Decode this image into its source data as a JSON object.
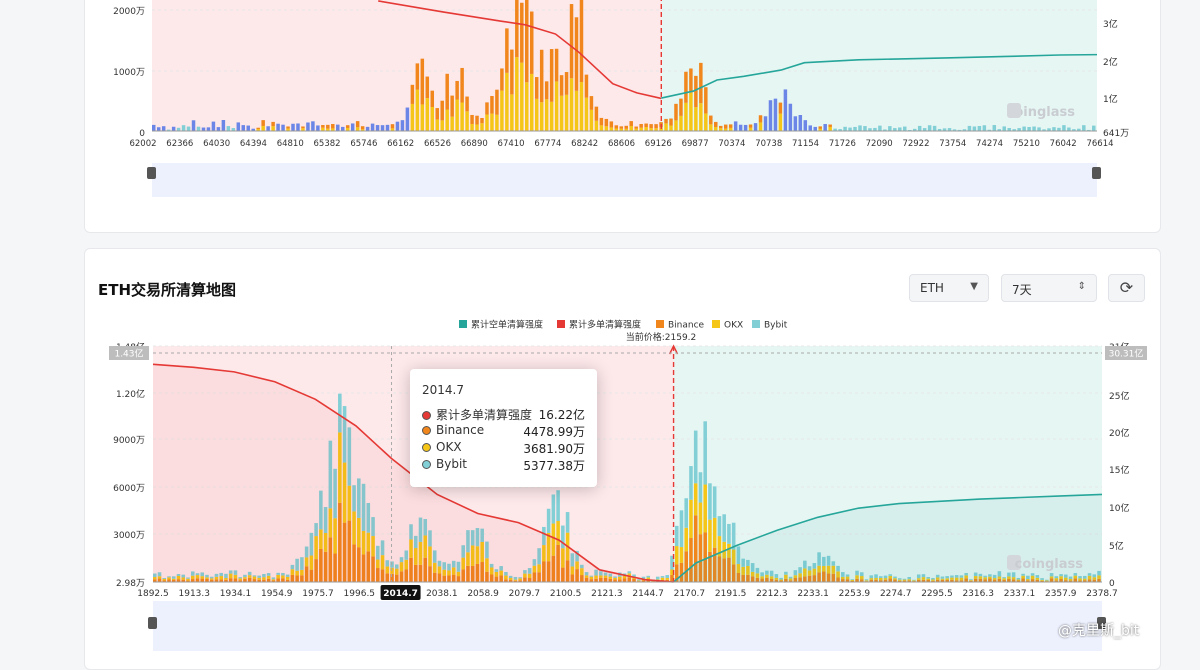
{
  "btc_section": {
    "y_left_labels": [
      "2000万",
      "1000万",
      "0"
    ],
    "y_right_labels": [
      "3亿",
      "2亿",
      "1亿",
      "641万"
    ],
    "x_labels": [
      "62002",
      "62366",
      "64030",
      "64394",
      "64810",
      "65382",
      "65746",
      "66162",
      "66526",
      "66890",
      "67410",
      "67774",
      "68242",
      "68606",
      "69126",
      "69877",
      "70374",
      "70738",
      "71154",
      "71726",
      "72090",
      "72922",
      "73754",
      "74274",
      "75210",
      "76042",
      "76614"
    ],
    "watermark": "coinglass"
  },
  "eth_section": {
    "title": "ETH交易所清算地图",
    "coin_select": "ETH",
    "period_select": "7天",
    "current_price_label": "当前价格:2159.2",
    "y_left_labels": [
      "1.48亿",
      "1.20亿",
      "9000万",
      "6000万",
      "3000万",
      "2.98万"
    ],
    "y_left_badge": "1.43亿",
    "y_right_labels": [
      "31亿",
      "25亿",
      "20亿",
      "15亿",
      "10亿",
      "5亿",
      "0"
    ],
    "y_right_badge": "30.31亿",
    "x_labels": [
      "1892.5",
      "1913.3",
      "1934.1",
      "1954.9",
      "1975.7",
      "1996.5",
      "2014.7",
      "2038.1",
      "2058.9",
      "2079.7",
      "2100.5",
      "2121.3",
      "2144.7",
      "2170.7",
      "2191.5",
      "2212.3",
      "2233.1",
      "2253.9",
      "2274.7",
      "2295.5",
      "2316.3",
      "2337.1",
      "2357.9",
      "2378.7"
    ],
    "x_highlight": "2014.7",
    "watermark": "coinglass"
  },
  "legend": [
    {
      "label": "累计空单清算强度",
      "color": "#26a69a"
    },
    {
      "label": "累计多单清算强度",
      "color": "#e53935"
    },
    {
      "label": "Binance",
      "color": "#f0861c"
    },
    {
      "label": "OKX",
      "color": "#f5c518"
    },
    {
      "label": "Bybit",
      "color": "#82cfd6"
    }
  ],
  "tooltip": {
    "title": "2014.7",
    "rows": [
      {
        "label": "累计多单清算强度",
        "value": "16.22亿",
        "color": "#e53935"
      },
      {
        "label": "Binance",
        "value": "4478.99万",
        "color": "#f0861c"
      },
      {
        "label": "OKX",
        "value": "3681.90万",
        "color": "#f5c518"
      },
      {
        "label": "Bybit",
        "value": "5377.38万",
        "color": "#82cfd6"
      }
    ]
  },
  "handle_watermark": "@克里斯_bit",
  "chart_data": [
    {
      "type": "bar",
      "title": "",
      "x_range": [
        62002,
        76614
      ],
      "current_price": 69877,
      "ylim_left": [
        0,
        2000
      ],
      "ylim_right_unit": "亿",
      "series": [
        {
          "name": "Binance",
          "values_desc": "stacked liquidation bars, peaks near 67774 and 68606 (~2000万+)"
        },
        {
          "name": "OKX",
          "values_desc": "stacked, peaks near 67774 and 70374"
        },
        {
          "name": "Bybit",
          "values_desc": "stacked"
        },
        {
          "name": "累计多单清算强度",
          "points": [
            [
              65500,
              3.6
            ],
            [
              66500,
              3.3
            ],
            [
              67400,
              3.05
            ],
            [
              67774,
              2.95
            ],
            [
              68242,
              2.7
            ],
            [
              68606,
              2.2
            ],
            [
              69126,
              1.35
            ],
            [
              69500,
              1.1
            ],
            [
              69877,
              0.95
            ]
          ]
        },
        {
          "name": "累计空单清算强度",
          "points": [
            [
              69877,
              0.96
            ],
            [
              70374,
              1.15
            ],
            [
              70738,
              1.45
            ],
            [
              71154,
              1.55
            ],
            [
              71726,
              1.72
            ],
            [
              72090,
              1.92
            ],
            [
              72922,
              2.0
            ],
            [
              73754,
              2.03
            ],
            [
              74274,
              2.05
            ],
            [
              75210,
              2.09
            ],
            [
              76042,
              2.13
            ],
            [
              76614,
              2.14
            ]
          ]
        }
      ]
    },
    {
      "type": "bar",
      "title": "ETH交易所清算地图",
      "x": [
        "1892.5",
        "1913.3",
        "1934.1",
        "1954.9",
        "1975.7",
        "1996.5",
        "2014.7",
        "2038.1",
        "2058.9",
        "2079.7",
        "2100.5",
        "2121.3",
        "2144.7",
        "2170.7",
        "2191.5",
        "2212.3",
        "2233.1",
        "2253.9",
        "2274.7",
        "2295.5",
        "2316.3",
        "2337.1",
        "2357.9",
        "2378.7"
      ],
      "current_price": 2159.2,
      "ylim_left": [
        0.0298,
        1.48
      ],
      "ylim_left_unit": "亿",
      "ylim_right": [
        0,
        31
      ],
      "ylim_right_unit": "亿",
      "series": [
        {
          "name": "累计多单清算强度",
          "points": [
            [
              1892.5,
              28.6
            ],
            [
              1913.3,
              28.2
            ],
            [
              1934.1,
              27.6
            ],
            [
              1954.9,
              26.3
            ],
            [
              1975.7,
              24.0
            ],
            [
              1996.5,
              20.5
            ],
            [
              2014.7,
              16.22
            ],
            [
              2038.1,
              11.5
            ],
            [
              2058.9,
              9.0
            ],
            [
              2079.7,
              7.8
            ],
            [
              2100.5,
              5.5
            ],
            [
              2121.3,
              1.6
            ],
            [
              2144.7,
              0.3
            ],
            [
              2159.2,
              0
            ]
          ]
        },
        {
          "name": "累计空单清算强度",
          "points": [
            [
              2159.2,
              0
            ],
            [
              2170.7,
              2.5
            ],
            [
              2191.5,
              4.8
            ],
            [
              2212.3,
              6.8
            ],
            [
              2233.1,
              8.5
            ],
            [
              2253.9,
              9.7
            ],
            [
              2274.7,
              10.3
            ],
            [
              2295.5,
              10.6
            ],
            [
              2316.3,
              10.9
            ],
            [
              2337.1,
              11.1
            ],
            [
              2357.9,
              11.3
            ],
            [
              2378.7,
              11.5
            ]
          ]
        },
        {
          "name": "Binance",
          "at_2014.7": 4478.99,
          "unit": "万"
        },
        {
          "name": "OKX",
          "at_2014.7": 3681.9,
          "unit": "万"
        },
        {
          "name": "Bybit",
          "at_2014.7": 5377.38,
          "unit": "万"
        }
      ]
    }
  ]
}
